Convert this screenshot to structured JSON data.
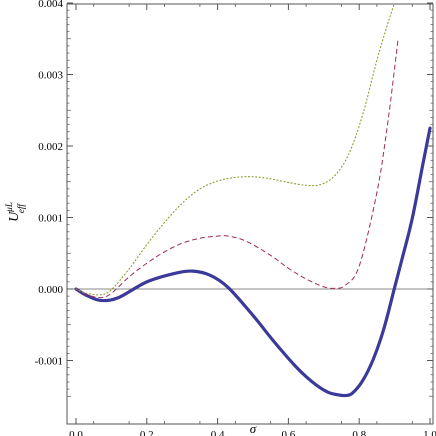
{
  "chart_data": {
    "type": "line",
    "xlabel": "σ",
    "ylabel": {
      "base": "U",
      "sup": "μL",
      "sub": "eff"
    },
    "xlim": [
      0,
      1.0
    ],
    "ylim": [
      -0.0015,
      0.004
    ],
    "x_ticks": [
      0.0,
      0.2,
      0.4,
      0.6,
      0.8,
      1.0
    ],
    "x_tick_labels": [
      "0.0",
      "0.2",
      "0.4",
      "0.6",
      "0.8",
      "1.0"
    ],
    "y_ticks": [
      -0.001,
      0.0,
      0.001,
      0.002,
      0.003,
      0.004
    ],
    "y_tick_labels": [
      "-0.001",
      "0.000",
      "0.001",
      "0.002",
      "0.003",
      "0.004"
    ],
    "grid": false,
    "zero_line": true,
    "series": [
      {
        "style": "solid-thick",
        "color": "#3b3a9a",
        "x": [
          0.0,
          0.03,
          0.07,
          0.12,
          0.2,
          0.28,
          0.33,
          0.38,
          0.43,
          0.5,
          0.56,
          0.62,
          0.67,
          0.71,
          0.74,
          0.76,
          0.78,
          0.81,
          0.84,
          0.87,
          0.9,
          0.92,
          0.95,
          0.98,
          1.0
        ],
        "y": [
          0.0,
          -9e-05,
          -0.00016,
          -0.00012,
          0.0001,
          0.00022,
          0.00025,
          0.00019,
          2e-05,
          -0.00037,
          -0.00074,
          -0.00108,
          -0.00131,
          -0.00144,
          -0.00148,
          -0.00149,
          -0.00146,
          -0.00128,
          -0.00098,
          -0.00055,
          2e-05,
          0.0004,
          0.00099,
          0.00175,
          0.00225
        ]
      },
      {
        "style": "dashed",
        "color": "#a02a5a",
        "x": [
          0.0,
          0.03,
          0.07,
          0.1,
          0.15,
          0.2,
          0.25,
          0.3,
          0.35,
          0.4,
          0.43,
          0.48,
          0.55,
          0.6,
          0.65,
          0.7,
          0.73,
          0.76,
          0.8,
          0.85,
          0.88,
          0.91
        ],
        "y": [
          0.0,
          -8e-05,
          -0.00012,
          -6e-05,
          0.00017,
          0.00036,
          0.00052,
          0.00064,
          0.00071,
          0.00074,
          0.00074,
          0.00067,
          0.00047,
          0.00029,
          0.00014,
          3e-05,
          1e-05,
          5e-05,
          0.00032,
          0.00135,
          0.0023,
          0.0035
        ]
      },
      {
        "style": "dotted",
        "color": "#8f9a2a",
        "x": [
          0.0,
          0.03,
          0.07,
          0.1,
          0.15,
          0.2,
          0.25,
          0.3,
          0.35,
          0.4,
          0.45,
          0.5,
          0.55,
          0.6,
          0.65,
          0.69,
          0.73,
          0.77,
          0.81,
          0.85,
          0.88,
          0.9
        ],
        "y": [
          0.0,
          -6e-05,
          -8e-05,
          -1e-05,
          0.00028,
          0.00062,
          0.00093,
          0.0012,
          0.0014,
          0.00151,
          0.00156,
          0.00157,
          0.00154,
          0.00149,
          0.00145,
          0.00146,
          0.00158,
          0.00188,
          0.00244,
          0.0032,
          0.0037,
          0.004
        ]
      }
    ]
  }
}
